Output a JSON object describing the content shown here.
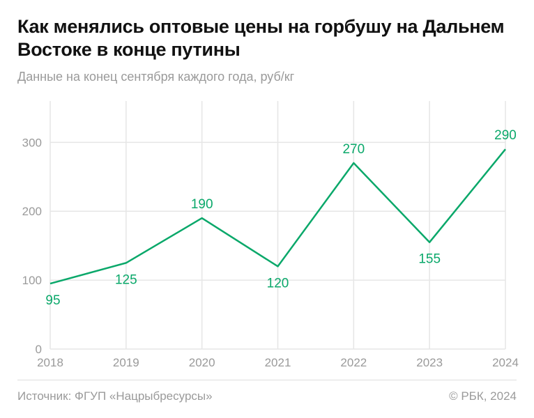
{
  "title": "Как менялись оптовые цены на горбушу на Дальнем Востоке в конце путины",
  "subtitle": "Данные на конец сентября каждого года, руб/кг",
  "source": "Источник: ФГУП «Нацрыбресурсы»",
  "copyright": "© РБК, 2024",
  "colors": {
    "line": "#0aa86a",
    "grid": "#e6e6e6",
    "tick_text": "#9a9a9a"
  },
  "chart_data": {
    "type": "line",
    "title": "Как менялись оптовые цены на горбушу на Дальнем Востоке в конце путины",
    "subtitle": "Данные на конец сентября каждого года, руб/кг",
    "categories": [
      "2018",
      "2019",
      "2020",
      "2021",
      "2022",
      "2023",
      "2024"
    ],
    "values": [
      95,
      125,
      190,
      120,
      270,
      155,
      290
    ],
    "data_labels": [
      "95",
      "125",
      "190",
      "120",
      "270",
      "155",
      "290"
    ],
    "yticks": [
      "0",
      "100",
      "200",
      "300"
    ],
    "ylim": [
      0,
      360
    ],
    "grid": true,
    "legend": "none"
  }
}
